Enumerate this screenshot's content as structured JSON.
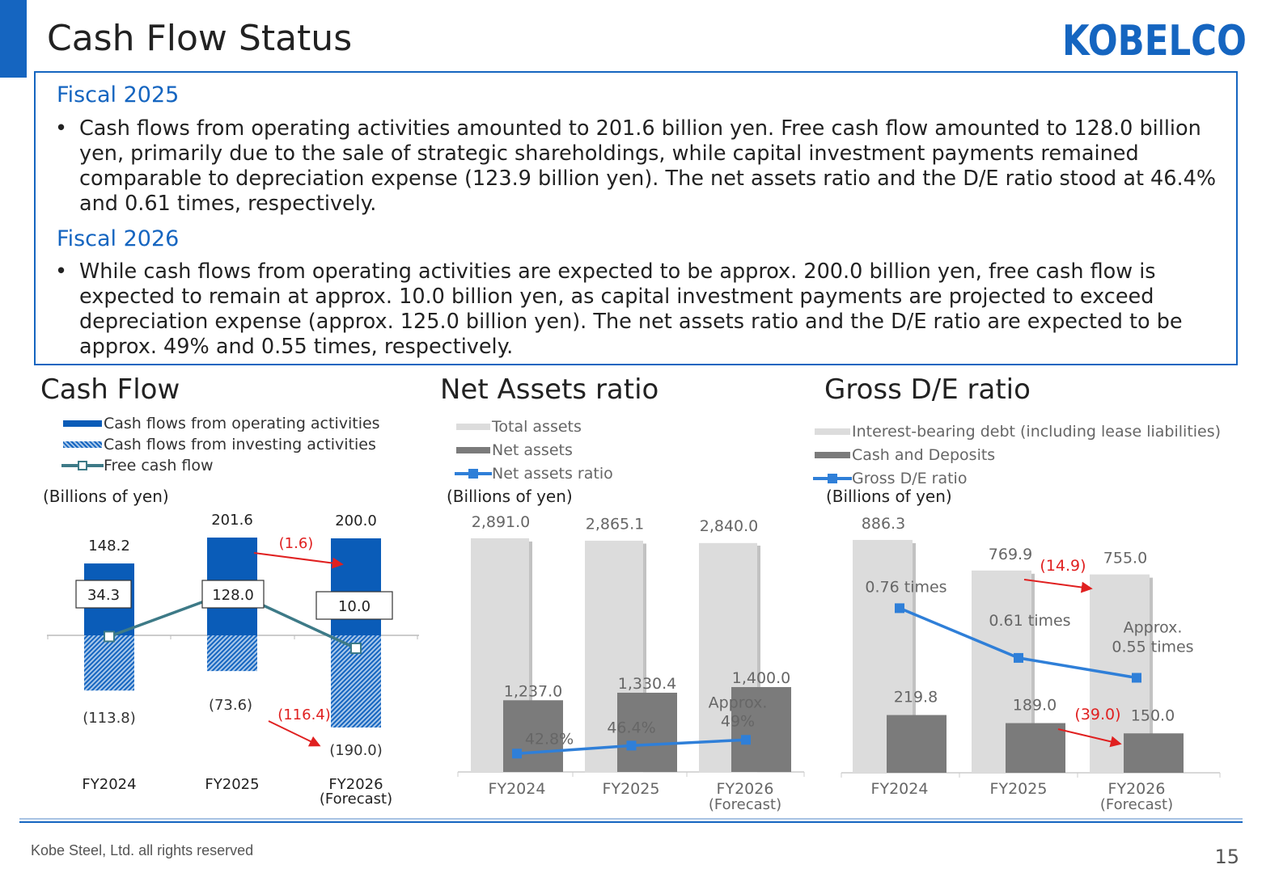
{
  "header": {
    "title": "Cash Flow Status",
    "logo_text": "KOBELCO",
    "brand_color": "#1565c0"
  },
  "summary": {
    "fy2025_heading": "Fiscal 2025",
    "fy2025_text": "Cash flows from operating activities amounted to 201.6 billion yen. Free cash flow amounted to 128.0 billion yen, primarily due to the sale of strategic shareholdings, while capital investment payments remained comparable to depreciation expense (123.9 billion yen). The net assets ratio and the D/E ratio stood at 46.4% and 0.61 times, respectively.",
    "fy2026_heading": "Fiscal 2026",
    "fy2026_text": "While cash flows from operating activities are expected to be approx. 200.0 billion yen, free cash flow is expected to remain at approx. 10.0 billion yen, as capital investment payments are projected to exceed depreciation expense (approx. 125.0 billion yen). The net assets ratio and the D/E ratio are expected to be approx. 49% and 0.55 times, respectively.",
    "bullet": "•"
  },
  "chart_data": [
    {
      "type": "bar",
      "title": "Cash Flow",
      "units": "(Billions of yen)",
      "categories": [
        "FY2024",
        "FY2025",
        "FY2026"
      ],
      "category_sublabels": [
        "",
        "",
        "(Forecast)"
      ],
      "series": [
        {
          "name": "Cash flows from operating activities",
          "type": "bar",
          "color": "#0a5cb8",
          "values": [
            148.2,
            201.6,
            200.0
          ],
          "labels": [
            "148.2",
            "201.6",
            "200.0"
          ]
        },
        {
          "name": "Cash flows from investing activities",
          "type": "bar",
          "pattern": "hatched",
          "color": "#1565c0",
          "values": [
            -113.8,
            -73.6,
            -190.0
          ],
          "labels": [
            "(113.8)",
            "(73.6)",
            "(190.0)"
          ]
        },
        {
          "name": "Free cash flow",
          "type": "line",
          "color": "#3d7a87",
          "values": [
            34.3,
            128.0,
            10.0
          ],
          "labels": [
            "34.3",
            "128.0",
            "10.0"
          ]
        }
      ],
      "annotations": [
        {
          "text": "(1.6)",
          "color": "#e02020"
        },
        {
          "text": "(116.4)",
          "color": "#e02020"
        }
      ],
      "ylim": [
        -200,
        230
      ]
    },
    {
      "type": "bar",
      "title": "Net Assets ratio",
      "units": "(Billions of yen)",
      "categories": [
        "FY2024",
        "FY2025",
        "FY2026"
      ],
      "category_sublabels": [
        "",
        "",
        "(Forecast)"
      ],
      "series": [
        {
          "name": "Total assets",
          "type": "bar",
          "color": "#dcdcdc",
          "values": [
            2891.0,
            2865.1,
            2840.0
          ],
          "labels": [
            "2,891.0",
            "2,865.1",
            "2,840.0"
          ]
        },
        {
          "name": "Net assets",
          "type": "bar",
          "color": "#7b7b7b",
          "values": [
            1237.0,
            1330.4,
            1400.0
          ],
          "labels": [
            "1,237.0",
            "1,330.4",
            "1,400.0"
          ]
        },
        {
          "name": "Net assets ratio",
          "type": "line",
          "color": "#2f7fd8",
          "values": [
            42.8,
            46.4,
            49.0
          ],
          "labels": [
            "42.8%",
            "46.4%",
            "49%"
          ],
          "label_prefix": [
            "",
            "",
            "Approx."
          ],
          "ylim": [
            0,
            160
          ]
        }
      ],
      "ylim": [
        0,
        3100
      ]
    },
    {
      "type": "bar",
      "title": "Gross D/E ratio",
      "units": "(Billions of yen)",
      "categories": [
        "FY2024",
        "FY2025",
        "FY2026"
      ],
      "category_sublabels": [
        "",
        "",
        "(Forecast)"
      ],
      "series": [
        {
          "name": "Interest-bearing debt (including lease liabilities)",
          "type": "bar",
          "color": "#dcdcdc",
          "values": [
            886.3,
            769.9,
            755.0
          ],
          "labels": [
            "886.3",
            "769.9",
            "755.0"
          ]
        },
        {
          "name": "Cash and Deposits",
          "type": "bar",
          "color": "#7b7b7b",
          "values": [
            219.8,
            189.0,
            150.0
          ],
          "labels": [
            "219.8",
            "189.0",
            "150.0"
          ]
        },
        {
          "name": "Gross D/E ratio",
          "type": "line",
          "color": "#2f7fd8",
          "values": [
            0.76,
            0.61,
            0.55
          ],
          "labels": [
            "0.76 times",
            "0.61 times",
            "0.55 times"
          ],
          "label_prefix": [
            "",
            "",
            "Approx."
          ],
          "ylim": [
            0,
            1.6
          ]
        }
      ],
      "annotations": [
        {
          "text": "(14.9)",
          "color": "#e02020"
        },
        {
          "text": "(39.0)",
          "color": "#e02020"
        }
      ],
      "ylim": [
        0,
        950
      ]
    }
  ],
  "footer": {
    "copyright": "Kobe Steel, Ltd.   all rights reserved",
    "page_number": "15"
  }
}
